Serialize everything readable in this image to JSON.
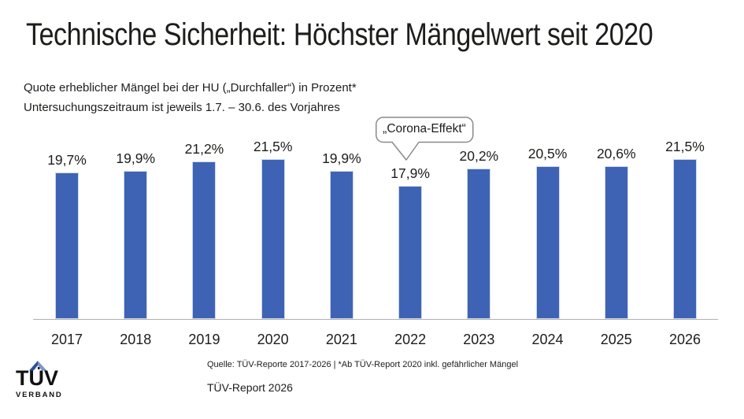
{
  "page": {
    "title": "Technische Sicherheit: Höchster Mängelwert seit 2020",
    "subtitle_line1": "Quote erheblicher Mängel bei der HU („Durchfaller“) in Prozent*",
    "subtitle_line2": "Untersuchungszeitraum ist jeweils 1.7. – 30.6. des Vorjahres"
  },
  "callout": {
    "text": "„Corona-Effekt“",
    "target_year": "2022"
  },
  "chart_data": {
    "type": "bar",
    "title": "Quote erheblicher Mängel bei der HU („Durchfaller“) in Prozent",
    "categories": [
      "2017",
      "2018",
      "2019",
      "2020",
      "2021",
      "2022",
      "2023",
      "2024",
      "2025",
      "2026"
    ],
    "values": [
      19.7,
      19.9,
      21.2,
      21.5,
      19.9,
      17.9,
      20.2,
      20.5,
      20.6,
      21.5
    ],
    "value_labels": [
      "19,7%",
      "19,9%",
      "21,2%",
      "21,5%",
      "19,9%",
      "17,9%",
      "20,2%",
      "20,5%",
      "20,6%",
      "21,5%"
    ],
    "xlabel": "",
    "ylabel": "",
    "ylim": [
      0,
      23
    ],
    "grid": false,
    "legend": false,
    "y_axis_visible": false,
    "bar_color": "#3e63b5",
    "annotation": {
      "text": "„Corona-Effekt“",
      "x": "2022",
      "y": 17.9
    }
  },
  "footer": {
    "source": "Quelle: TÜV-Reporte 2017-2026 | *Ab TÜV-Report 2020 inkl. gefährlicher Mängel",
    "report": "TÜV-Report 2026",
    "logo": {
      "name": "TÜV VERBAND",
      "line1": "TÜV",
      "line2": "VERBAND"
    }
  },
  "colors": {
    "bar": "#3e63b5",
    "bar_border": "#ccd8ef",
    "text": "#1d1d1b",
    "axis": "#b0b0b0",
    "callout_border": "#8a8a8a",
    "logo_blue_dark": "#2d4f9e",
    "logo_blue_light": "#7e96c8"
  }
}
